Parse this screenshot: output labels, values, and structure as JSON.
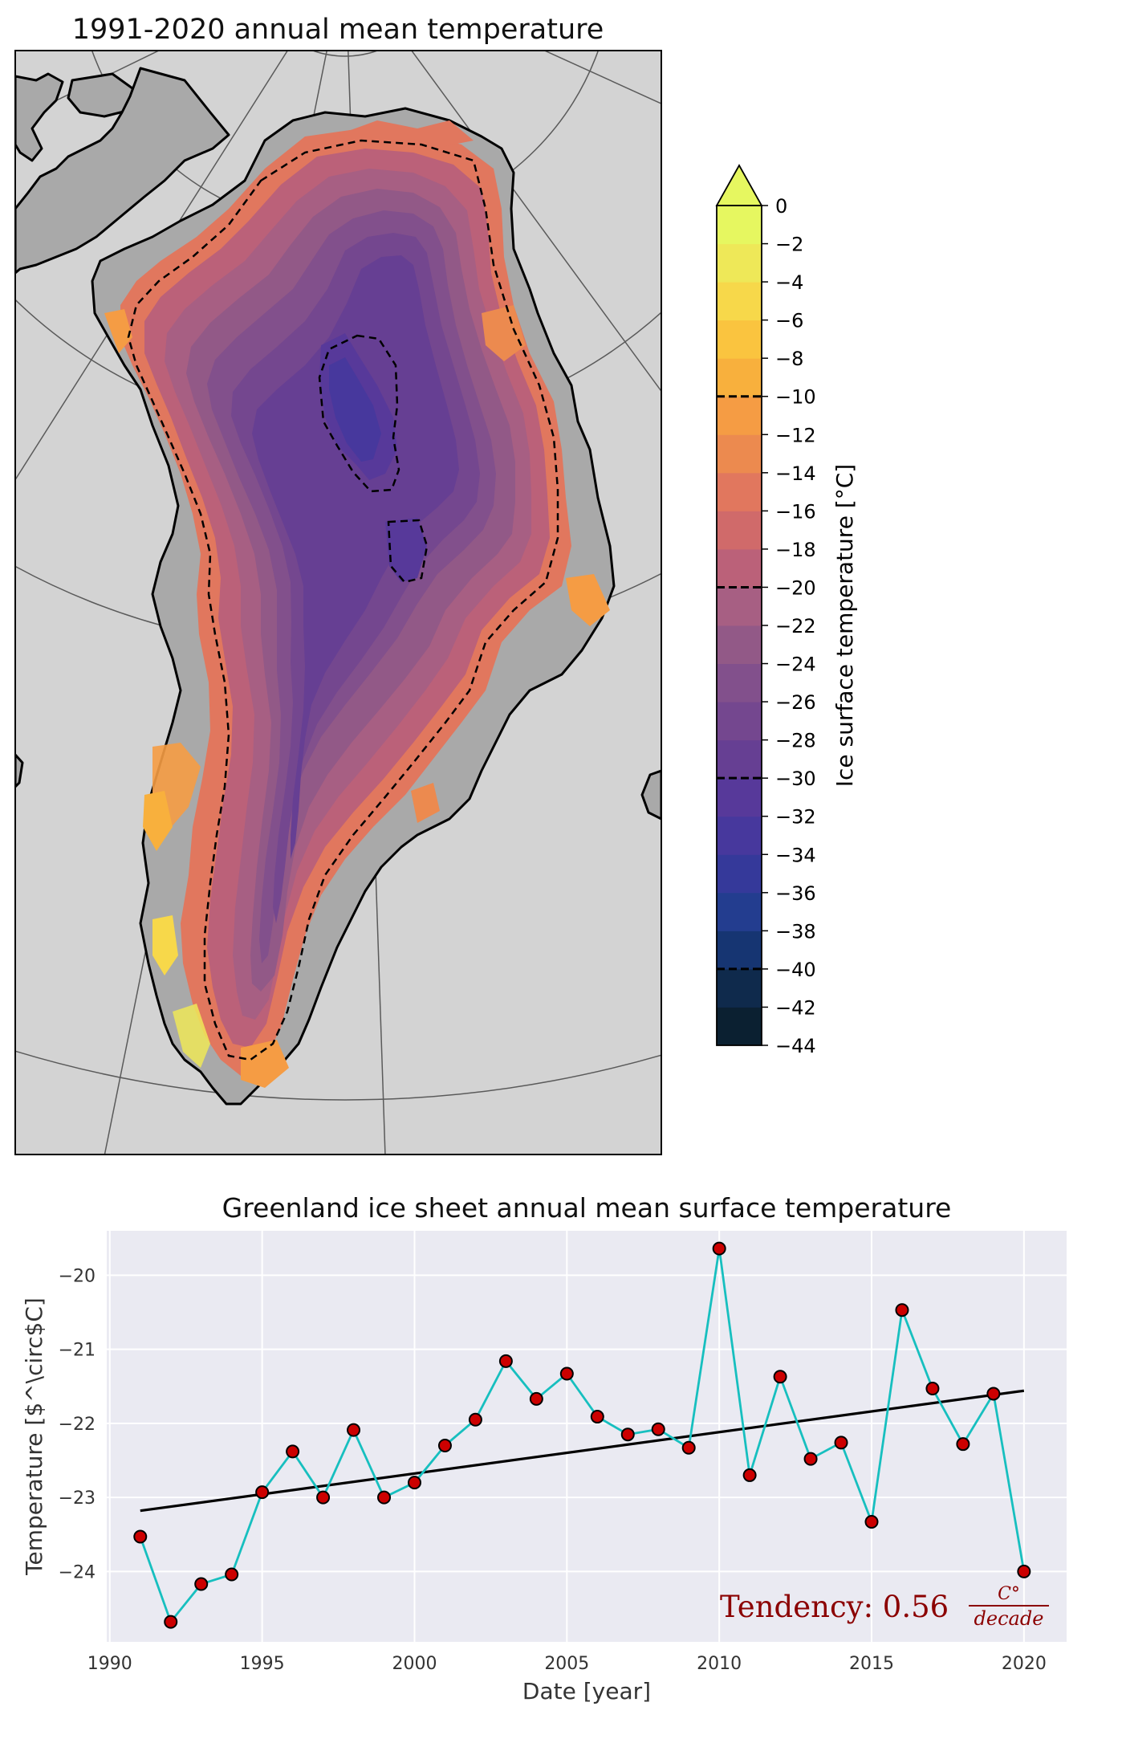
{
  "chart_data": [
    {
      "type": "heatmap",
      "title": "1991-2020 annual mean temperature",
      "colorbar": {
        "label": "Ice surface temperature [°C]",
        "ticks": [
          0,
          -2,
          -4,
          -6,
          -8,
          -10,
          -12,
          -14,
          -16,
          -18,
          -20,
          -22,
          -24,
          -26,
          -28,
          -30,
          -32,
          -34,
          -36,
          -38,
          -40,
          -42,
          -44
        ],
        "tick_labels": [
          "0",
          "−2",
          "−4",
          "−6",
          "−8",
          "−10",
          "−12",
          "−14",
          "−16",
          "−18",
          "−20",
          "−22",
          "−24",
          "−26",
          "−28",
          "−30",
          "−32",
          "−34",
          "−36",
          "−38",
          "−40",
          "−42",
          "−44"
        ],
        "dashed_contours": [
          -10,
          -20,
          -30,
          -40
        ],
        "range": [
          -44,
          0
        ],
        "extend": "max",
        "colors": [
          "#0b2031",
          "#0f2a4c",
          "#163572",
          "#233d8f",
          "#35399a",
          "#47389d",
          "#57399a",
          "#663f93",
          "#74478f",
          "#82508c",
          "#925987",
          "#a75f83",
          "#bb6179",
          "#d06a6a",
          "#e1775e",
          "#ec8a4f",
          "#f59c44",
          "#f8b03d",
          "#fac43f",
          "#f7d84a",
          "#eee858",
          "#e6f760"
        ]
      }
    },
    {
      "type": "line",
      "title": "Greenland ice sheet annual mean surface temperature",
      "xlabel": "Date [year]",
      "ylabel": "Temperature [$^\\circ$C]",
      "xlim": [
        1989.9,
        2021.4
      ],
      "ylim": [
        -24.95,
        -19.4
      ],
      "xticks": [
        1990,
        1995,
        2000,
        2005,
        2010,
        2015,
        2020
      ],
      "xtick_labels": [
        "1990",
        "1995",
        "2000",
        "2005",
        "2010",
        "2015",
        "2020"
      ],
      "yticks": [
        -20,
        -21,
        -22,
        -23,
        -24
      ],
      "ytick_labels": [
        "−20",
        "−21",
        "−22",
        "−23",
        "−24"
      ],
      "x": [
        1991,
        1992,
        1993,
        1994,
        1995,
        1996,
        1997,
        1998,
        1999,
        2000,
        2001,
        2002,
        2003,
        2004,
        2005,
        2006,
        2007,
        2008,
        2009,
        2010,
        2011,
        2012,
        2013,
        2014,
        2015,
        2016,
        2017,
        2018,
        2019,
        2020
      ],
      "series": [
        {
          "name": "annual mean",
          "color": "#17bfbf",
          "marker_color": "#cc0000",
          "values": [
            -23.53,
            -24.68,
            -24.17,
            -24.04,
            -22.93,
            -22.38,
            -23.0,
            -22.09,
            -23.0,
            -22.8,
            -22.3,
            -21.95,
            -21.16,
            -21.67,
            -21.33,
            -21.91,
            -22.15,
            -22.08,
            -22.33,
            -19.64,
            -22.7,
            -21.37,
            -22.48,
            -22.26,
            -23.33,
            -20.47,
            -21.53,
            -22.28,
            -21.6,
            -24.0
          ]
        },
        {
          "name": "trend",
          "color": "#000000",
          "x": [
            1991,
            2020
          ],
          "values": [
            -23.18,
            -21.56
          ]
        }
      ],
      "annotation": {
        "prefix": "Tendency: 0.56",
        "numerator": "C°",
        "denominator": "decade",
        "color": "#8b0000"
      }
    }
  ]
}
